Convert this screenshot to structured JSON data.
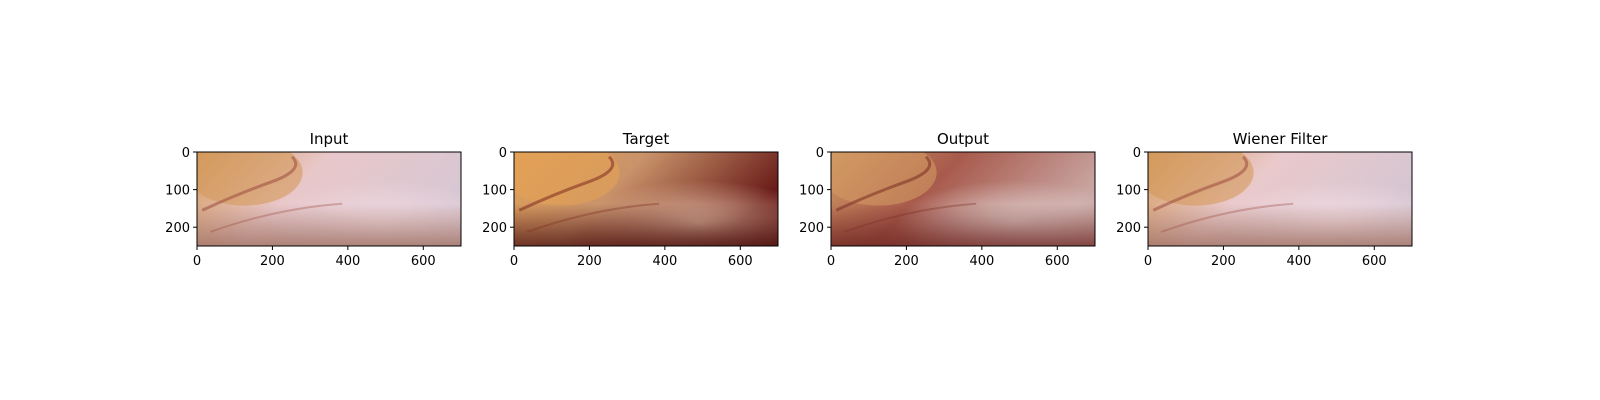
{
  "figure": {
    "panels": [
      {
        "id": "input",
        "title": "Input",
        "image": {
          "base": "#d9a79a",
          "top_left": "#d49a5b",
          "center": "#e9c7c9",
          "right": "#d8c7d3",
          "haze": "#f3dde4",
          "vessel": "#9a4b3f",
          "dark": "#9b6a5a"
        },
        "xticks": [
          "0",
          "200",
          "400",
          "600"
        ],
        "yticks": [
          "0",
          "100",
          "200"
        ]
      },
      {
        "id": "target",
        "title": "Target",
        "image": {
          "base": "#a54a34",
          "top_left": "#e3a155",
          "center": "#c9936a",
          "right": "#6a1d1a",
          "haze": "#e6c0a7",
          "vessel": "#7d2a1f",
          "dark": "#4c1210"
        },
        "xticks": [
          "0",
          "200",
          "400",
          "600"
        ],
        "yticks": [
          "0",
          "100",
          "200"
        ]
      },
      {
        "id": "output",
        "title": "Output",
        "image": {
          "base": "#a45542",
          "top_left": "#d29a62",
          "center": "#a85a4c",
          "right": "#c9a5a2",
          "haze": "#e2d1cf",
          "vessel": "#7a2d25",
          "dark": "#6a231f"
        },
        "xticks": [
          "0",
          "200",
          "400",
          "600"
        ],
        "yticks": [
          "0",
          "100",
          "200"
        ]
      },
      {
        "id": "wiener",
        "title": "Wiener Filter",
        "image": {
          "base": "#d9a79a",
          "top_left": "#d49a5b",
          "center": "#eac9cb",
          "right": "#d6c6d2",
          "haze": "#f5e0e7",
          "vessel": "#9a4b3f",
          "dark": "#9b6a5a"
        },
        "xticks": [
          "0",
          "200",
          "400",
          "600"
        ],
        "yticks": [
          "0",
          "100",
          "200"
        ]
      }
    ],
    "axes": {
      "x_range": [
        0,
        700
      ],
      "y_range": [
        0,
        250
      ],
      "y_inverted": true,
      "xtick_values": [
        0,
        200,
        400,
        600
      ],
      "ytick_values": [
        0,
        100,
        200
      ]
    }
  }
}
